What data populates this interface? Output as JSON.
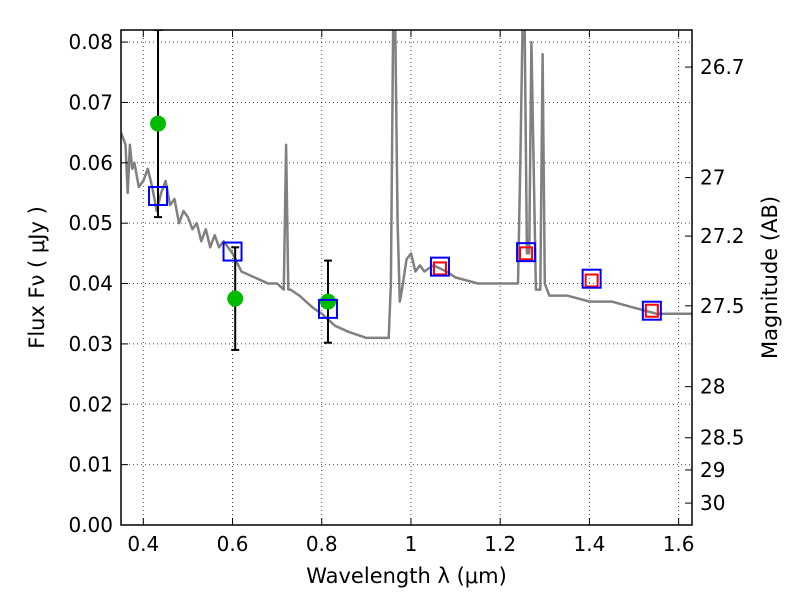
{
  "chart_data": {
    "type": "line",
    "title": "",
    "xlabel": "Wavelength  λ (μm)",
    "ylabel": "Flux  Fν  ( μJy )",
    "ylabel_right": "Magnitude (AB)",
    "xlim": [
      0.35,
      1.63
    ],
    "ylim": [
      0.0,
      0.082
    ],
    "grid": true,
    "x_ticks": [
      0.4,
      0.6,
      0.8,
      1.0,
      1.2,
      1.4,
      1.6
    ],
    "x_tick_labels": [
      "0.4",
      "0.6",
      "0.8",
      "1",
      "1.2",
      "1.4",
      "1.6"
    ],
    "y_ticks": [
      0.0,
      0.01,
      0.02,
      0.03,
      0.04,
      0.05,
      0.06,
      0.07,
      0.08
    ],
    "y_tick_labels": [
      "0.00",
      "0.01",
      "0.02",
      "0.03",
      "0.04",
      "0.05",
      "0.06",
      "0.07",
      "0.08"
    ],
    "right_ticks": [
      {
        "mag": 26.7,
        "label": "26.7"
      },
      {
        "mag": 27,
        "label": "27"
      },
      {
        "mag": 27.2,
        "label": "27.2"
      },
      {
        "mag": 27.5,
        "label": "27.5"
      },
      {
        "mag": 28,
        "label": "28"
      },
      {
        "mag": 28.5,
        "label": "28.5"
      },
      {
        "mag": 29,
        "label": "29"
      },
      {
        "mag": 30,
        "label": "30"
      }
    ],
    "series": [
      {
        "name": "SED template",
        "kind": "line",
        "color": "#808080",
        "x": [
          0.35,
          0.36,
          0.365,
          0.37,
          0.375,
          0.38,
          0.39,
          0.4,
          0.41,
          0.42,
          0.43,
          0.44,
          0.45,
          0.46,
          0.47,
          0.48,
          0.49,
          0.5,
          0.51,
          0.52,
          0.53,
          0.54,
          0.55,
          0.56,
          0.57,
          0.58,
          0.6,
          0.62,
          0.65,
          0.68,
          0.7,
          0.715,
          0.72,
          0.725,
          0.73,
          0.75,
          0.78,
          0.8,
          0.83,
          0.86,
          0.9,
          0.93,
          0.95,
          0.955,
          0.96,
          0.965,
          0.97,
          0.975,
          0.98,
          0.99,
          1.0,
          1.01,
          1.02,
          1.03,
          1.05,
          1.08,
          1.1,
          1.15,
          1.2,
          1.24,
          1.245,
          1.25,
          1.255,
          1.26,
          1.265,
          1.27,
          1.275,
          1.28,
          1.29,
          1.295,
          1.3,
          1.305,
          1.31,
          1.35,
          1.4,
          1.45,
          1.5,
          1.55,
          1.6,
          1.63
        ],
        "y": [
          0.065,
          0.063,
          0.055,
          0.063,
          0.059,
          0.06,
          0.056,
          0.057,
          0.059,
          0.056,
          0.052,
          0.055,
          0.057,
          0.053,
          0.054,
          0.05,
          0.052,
          0.051,
          0.049,
          0.05,
          0.047,
          0.049,
          0.046,
          0.048,
          0.046,
          0.047,
          0.045,
          0.042,
          0.041,
          0.04,
          0.04,
          0.039,
          0.063,
          0.039,
          0.039,
          0.038,
          0.036,
          0.035,
          0.033,
          0.032,
          0.031,
          0.031,
          0.031,
          0.04,
          0.082,
          0.082,
          0.05,
          0.037,
          0.039,
          0.044,
          0.045,
          0.042,
          0.043,
          0.042,
          0.043,
          0.042,
          0.041,
          0.04,
          0.04,
          0.04,
          0.06,
          0.082,
          0.082,
          0.045,
          0.045,
          0.08,
          0.06,
          0.039,
          0.039,
          0.078,
          0.04,
          0.039,
          0.038,
          0.038,
          0.037,
          0.037,
          0.036,
          0.035,
          0.035,
          0.035
        ]
      },
      {
        "name": "Observed photometry",
        "kind": "points",
        "color": "#00bb00",
        "x": [
          0.433,
          0.606,
          0.814
        ],
        "y": [
          0.0665,
          0.0375,
          0.037
        ],
        "yerr": [
          0.0155,
          0.0085,
          0.0068
        ]
      },
      {
        "name": "Model photometry (red)",
        "kind": "squares",
        "color": "#ff0000",
        "x": [
          1.065,
          1.258,
          1.405,
          1.54
        ],
        "y": [
          0.0425,
          0.045,
          0.0405,
          0.0355
        ]
      },
      {
        "name": "Model photometry (blue)",
        "kind": "squares",
        "color": "#0000ff",
        "x": [
          0.433,
          0.6,
          0.814,
          1.065,
          1.258,
          1.405,
          1.54
        ],
        "y": [
          0.0545,
          0.0453,
          0.0358,
          0.0428,
          0.0452,
          0.0408,
          0.0355
        ]
      }
    ]
  }
}
